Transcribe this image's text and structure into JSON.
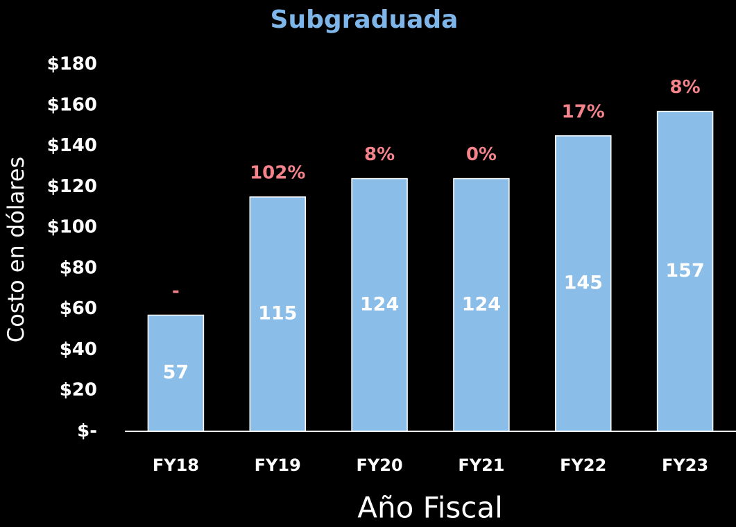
{
  "chart_data": {
    "type": "bar",
    "title": "Subgraduada",
    "y_axis_label": "Costo en dólares",
    "x_axis_label": "Año Fiscal",
    "categories": [
      "FY18",
      "FY19",
      "FY20",
      "FY21",
      "FY22",
      "FY23"
    ],
    "values": [
      57,
      115,
      124,
      124,
      145,
      157
    ],
    "annotations": [
      "-",
      "102%",
      "8%",
      "0%",
      "17%",
      "8%"
    ],
    "color": "#8bbde9",
    "ylim": [
      0,
      180
    ],
    "yticks": [
      {
        "value": 0,
        "label": "$-"
      },
      {
        "value": 20,
        "label": "$20"
      },
      {
        "value": 40,
        "label": "$40"
      },
      {
        "value": 60,
        "label": "$60"
      },
      {
        "value": 80,
        "label": "$80"
      },
      {
        "value": 100,
        "label": "$100"
      },
      {
        "value": 120,
        "label": "$120"
      },
      {
        "value": 140,
        "label": "$140"
      },
      {
        "value": 160,
        "label": "$160"
      },
      {
        "value": 180,
        "label": "$180"
      }
    ],
    "grid": false
  }
}
